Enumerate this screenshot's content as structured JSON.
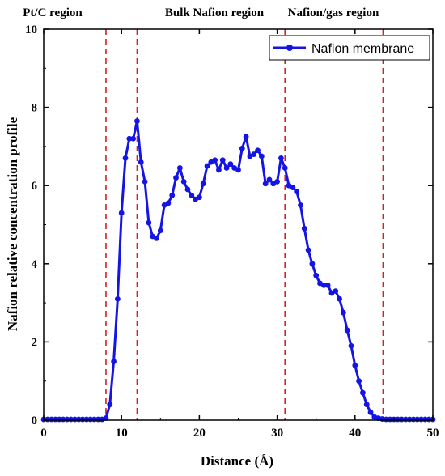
{
  "chart_data": {
    "type": "line",
    "title": "",
    "xlabel": "Distance (Å)",
    "ylabel": "Nafion relative concentration profile",
    "xlim": [
      0,
      50
    ],
    "ylim": [
      0,
      10
    ],
    "xticks": [
      0,
      10,
      20,
      30,
      40,
      50
    ],
    "yticks": [
      0,
      2,
      4,
      6,
      8,
      10
    ],
    "grid": false,
    "legend_position": "top-right",
    "colors": {
      "series": "#1414e6",
      "region_lines": "#d42020",
      "axes": "#000000"
    },
    "regions": [
      {
        "label": "Pt/C region"
      },
      {
        "label": "Bulk Nafion region"
      },
      {
        "label": "Nafion/gas region"
      }
    ],
    "region_boundaries_x": [
      8,
      12,
      31,
      43.6
    ],
    "series": [
      {
        "name": "Nafion membrane",
        "x": [
          0,
          0.5,
          1,
          1.5,
          2,
          2.5,
          3,
          3.5,
          4,
          4.5,
          5,
          5.5,
          6,
          6.5,
          7,
          7.5,
          8,
          8.5,
          9,
          9.5,
          10,
          10.5,
          11,
          11.5,
          12,
          12.5,
          13,
          13.5,
          14,
          14.5,
          15,
          15.5,
          16,
          16.5,
          17,
          17.5,
          18,
          18.5,
          19,
          19.5,
          20,
          20.5,
          21,
          21.5,
          22,
          22.5,
          23,
          23.5,
          24,
          24.5,
          25,
          25.5,
          26,
          26.5,
          27,
          27.5,
          28,
          28.5,
          29,
          29.5,
          30,
          30.5,
          31,
          31.5,
          32,
          32.5,
          33,
          33.5,
          34,
          34.5,
          35,
          35.5,
          36,
          36.5,
          37,
          37.5,
          38,
          38.5,
          39,
          39.5,
          40,
          40.5,
          41,
          41.5,
          42,
          42.5,
          43,
          43.5,
          44,
          44.5,
          45,
          45.5,
          46,
          46.5,
          47,
          47.5,
          48,
          48.5,
          49,
          49.5,
          50
        ],
        "values": [
          0.02,
          0.02,
          0.02,
          0.02,
          0.02,
          0.02,
          0.02,
          0.02,
          0.02,
          0.02,
          0.02,
          0.02,
          0.02,
          0.02,
          0.02,
          0.02,
          0.05,
          0.4,
          1.5,
          3.1,
          5.3,
          6.7,
          7.2,
          7.2,
          7.65,
          6.6,
          6.1,
          5.05,
          4.7,
          4.65,
          4.85,
          5.5,
          5.55,
          5.75,
          6.2,
          6.45,
          6.1,
          5.9,
          5.75,
          5.65,
          5.7,
          6.05,
          6.5,
          6.6,
          6.65,
          6.4,
          6.65,
          6.45,
          6.55,
          6.45,
          6.4,
          6.95,
          7.25,
          6.75,
          6.8,
          6.9,
          6.75,
          6.05,
          6.15,
          6.05,
          6.1,
          6.7,
          6.45,
          6.0,
          5.95,
          5.85,
          5.5,
          4.9,
          4.35,
          4.0,
          3.7,
          3.5,
          3.45,
          3.45,
          3.25,
          3.3,
          3.1,
          2.75,
          2.3,
          1.9,
          1.4,
          1.0,
          0.7,
          0.4,
          0.2,
          0.08,
          0.05,
          0.03,
          0.02,
          0.02,
          0.02,
          0.02,
          0.02,
          0.02,
          0.02,
          0.02,
          0.02,
          0.02,
          0.02,
          0.02,
          0.02
        ]
      }
    ]
  }
}
